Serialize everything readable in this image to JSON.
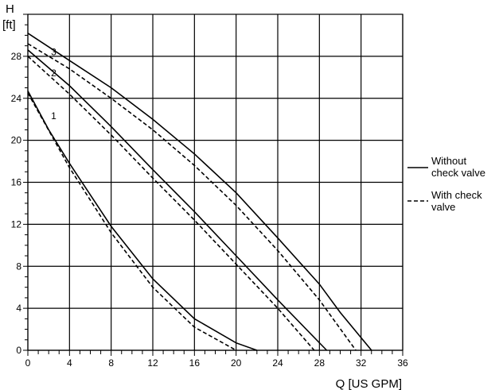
{
  "chart_data": {
    "type": "line",
    "title": "",
    "xlabel": "Q [US GPM]",
    "ylabel_line1": "H",
    "ylabel_line2": "[ft]",
    "xlim": [
      0,
      36
    ],
    "ylim": [
      0,
      32
    ],
    "xticks": [
      0,
      4,
      8,
      12,
      16,
      20,
      24,
      28,
      32,
      36
    ],
    "yticks": [
      0,
      4,
      8,
      12,
      16,
      20,
      24,
      28
    ],
    "grid": true,
    "legend_placement": "right",
    "legend": [
      {
        "label_line1": "Without",
        "label_line2": "check valve",
        "style": "solid"
      },
      {
        "label_line1": "With check",
        "label_line2": "valve",
        "style": "dashed"
      }
    ],
    "series": [
      {
        "label": "1",
        "style": "solid",
        "points": [
          [
            0,
            24.7
          ],
          [
            2,
            21
          ],
          [
            4,
            17.8
          ],
          [
            8,
            11.8
          ],
          [
            12,
            6.8
          ],
          [
            16,
            3
          ],
          [
            20,
            0.7
          ],
          [
            22,
            0
          ]
        ]
      },
      {
        "label": "1",
        "style": "dashed",
        "points": [
          [
            0,
            24.5
          ],
          [
            4,
            17.4
          ],
          [
            8,
            11.2
          ],
          [
            12,
            6
          ],
          [
            16,
            2.2
          ],
          [
            20,
            0
          ]
        ]
      },
      {
        "label": "2",
        "style": "solid",
        "points": [
          [
            0,
            28.6
          ],
          [
            4,
            25.2
          ],
          [
            8,
            21.3
          ],
          [
            12,
            17.2
          ],
          [
            16,
            13.2
          ],
          [
            20,
            9.0
          ],
          [
            24,
            4.8
          ],
          [
            28.7,
            0
          ]
        ]
      },
      {
        "label": "2",
        "style": "dashed",
        "points": [
          [
            0,
            28
          ],
          [
            4,
            24.4
          ],
          [
            8,
            20.5
          ],
          [
            12,
            16.4
          ],
          [
            16,
            12.4
          ],
          [
            20,
            8.2
          ],
          [
            24,
            4
          ],
          [
            27.5,
            0
          ]
        ]
      },
      {
        "label": "3",
        "style": "solid",
        "points": [
          [
            0,
            30.2
          ],
          [
            4,
            27.6
          ],
          [
            8,
            25
          ],
          [
            12,
            22
          ],
          [
            16,
            18.7
          ],
          [
            20,
            15
          ],
          [
            24,
            10.7
          ],
          [
            28,
            6.3
          ],
          [
            30,
            3.6
          ],
          [
            33,
            0
          ]
        ]
      },
      {
        "label": "3",
        "style": "dashed",
        "points": [
          [
            0,
            29.2
          ],
          [
            4,
            26.8
          ],
          [
            8,
            24
          ],
          [
            12,
            21
          ],
          [
            16,
            17.6
          ],
          [
            20,
            13.8
          ],
          [
            24,
            9.5
          ],
          [
            28,
            4.8
          ],
          [
            31.5,
            0
          ]
        ]
      }
    ],
    "curve_labels": [
      {
        "text": "1",
        "x": 2,
        "y": 22.3
      },
      {
        "text": "2",
        "x": 2,
        "y": 26.4
      },
      {
        "text": "3",
        "x": 2,
        "y": 28.4
      }
    ]
  }
}
